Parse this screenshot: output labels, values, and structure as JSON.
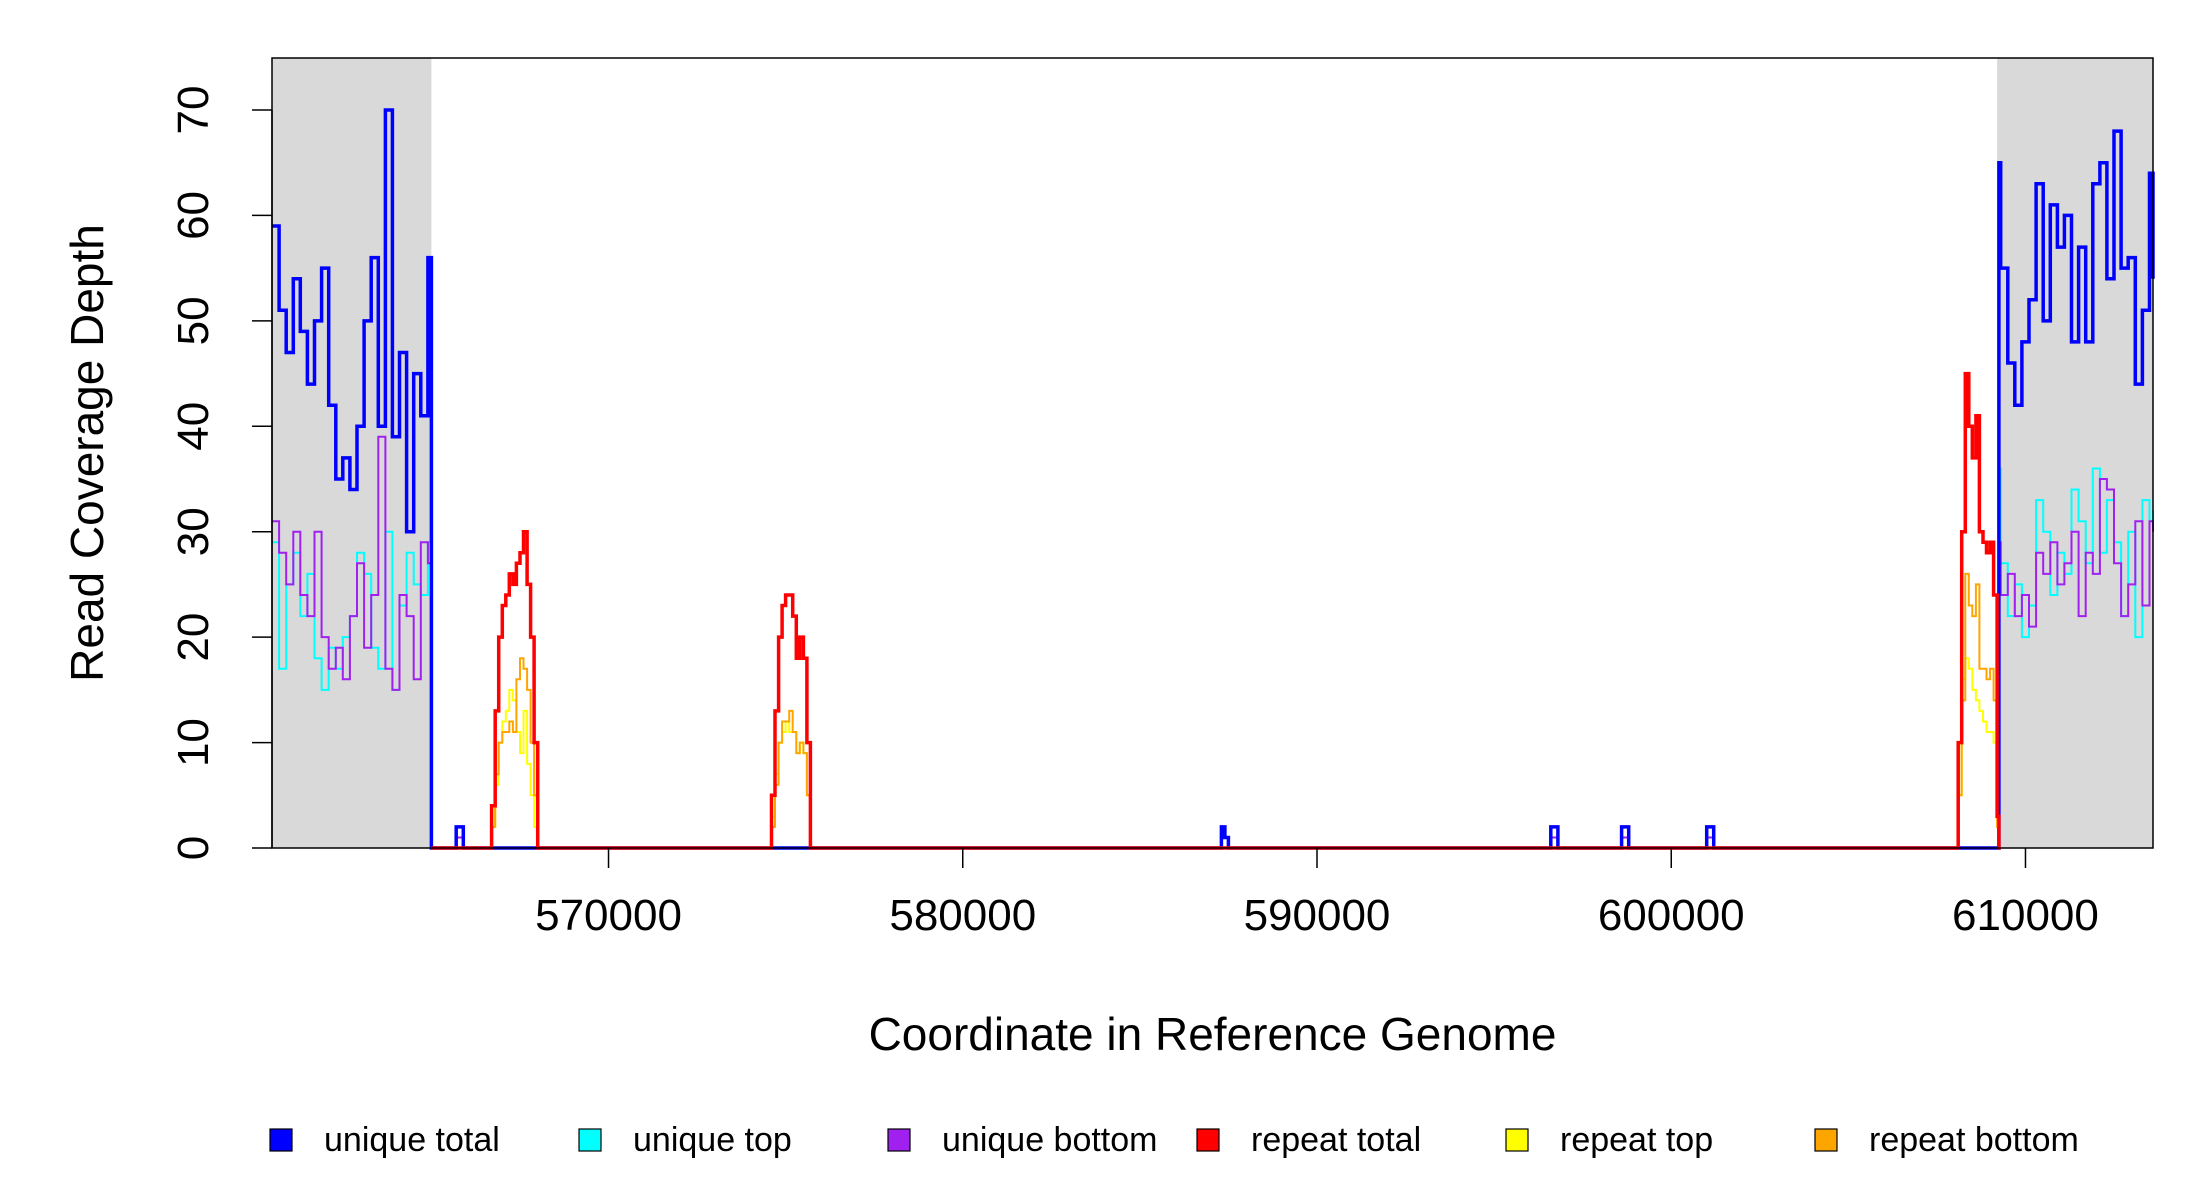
{
  "chart_data": {
    "type": "line",
    "title": "",
    "xlabel": "Coordinate in Reference Genome",
    "ylabel": "Read Coverage Depth",
    "xlim": [
      560500,
      613600
    ],
    "ylim": [
      0,
      70
    ],
    "xticks": [
      570000,
      580000,
      590000,
      600000,
      610000
    ],
    "xtick_labels": [
      "570000",
      "580000",
      "590000",
      "600000",
      "610000"
    ],
    "yticks": [
      0,
      10,
      20,
      30,
      40,
      50,
      60,
      70
    ],
    "ytick_labels": [
      "0",
      "10",
      "20",
      "30",
      "40",
      "50",
      "60",
      "70"
    ],
    "grid": false,
    "legend_position": "bottom",
    "shaded_regions": [
      {
        "x0": 560500,
        "x1": 565000,
        "color": "#d9d9d9"
      },
      {
        "x0": 609200,
        "x1": 613600,
        "color": "#d9d9d9"
      }
    ],
    "series": [
      {
        "name": "unique total",
        "color": "#0000ff",
        "x": [
          560500,
          560700,
          560900,
          561100,
          561300,
          561500,
          561700,
          561900,
          562100,
          562300,
          562500,
          562700,
          562900,
          563100,
          563300,
          563500,
          563700,
          563900,
          564100,
          564300,
          564500,
          564700,
          564900,
          565000,
          565050,
          565100,
          565700,
          565900,
          566000,
          587300,
          587400,
          587500,
          587700,
          596600,
          596800,
          596900,
          598600,
          598800,
          598900,
          601000,
          601200,
          601300,
          609100,
          609250,
          609300,
          609500,
          609700,
          609900,
          610100,
          610300,
          610500,
          610700,
          610900,
          611100,
          611300,
          611500,
          611700,
          611900,
          612100,
          612300,
          612500,
          612700,
          612900,
          613100,
          613300,
          613500,
          613600
        ],
        "y": [
          59,
          51,
          47,
          54,
          49,
          44,
          50,
          55,
          42,
          35,
          37,
          34,
          40,
          50,
          56,
          40,
          70,
          39,
          47,
          30,
          45,
          41,
          56,
          0,
          0,
          0,
          2,
          0,
          0,
          2,
          1,
          0,
          0,
          2,
          0,
          0,
          2,
          0,
          0,
          2,
          0,
          0,
          0,
          65,
          55,
          46,
          42,
          48,
          52,
          63,
          50,
          61,
          57,
          60,
          48,
          57,
          48,
          63,
          65,
          54,
          68,
          55,
          56,
          44,
          51,
          64,
          54
        ]
      },
      {
        "name": "unique top",
        "color": "#00ffff",
        "x": [
          560500,
          560700,
          560900,
          561100,
          561300,
          561500,
          561700,
          561900,
          562100,
          562300,
          562500,
          562700,
          562900,
          563100,
          563300,
          563500,
          563700,
          563900,
          564100,
          564300,
          564500,
          564700,
          564900,
          565000,
          565100,
          565700,
          565900,
          566000,
          587300,
          587400,
          587500,
          587700,
          596600,
          596800,
          596900,
          598600,
          598800,
          598900,
          601000,
          601200,
          601300,
          609100,
          609250,
          609300,
          609500,
          609700,
          609900,
          610100,
          610300,
          610500,
          610700,
          610900,
          611100,
          611300,
          611500,
          611700,
          611900,
          612100,
          612300,
          612500,
          612700,
          612900,
          613100,
          613300,
          613500,
          613600
        ],
        "y": [
          29,
          17,
          25,
          28,
          22,
          26,
          18,
          15,
          19,
          17,
          20,
          22,
          28,
          26,
          19,
          17,
          30,
          15,
          23,
          28,
          25,
          24,
          29,
          0,
          0,
          1,
          0,
          0,
          1,
          1,
          0,
          0,
          1,
          0,
          0,
          1,
          0,
          0,
          1,
          0,
          0,
          0,
          36,
          27,
          22,
          25,
          20,
          23,
          33,
          30,
          24,
          28,
          26,
          34,
          31,
          27,
          36,
          28,
          33,
          29,
          22,
          30,
          20,
          33,
          31,
          32
        ]
      },
      {
        "name": "unique bottom",
        "color": "#a020f0",
        "x": [
          560500,
          560700,
          560900,
          561100,
          561300,
          561500,
          561700,
          561900,
          562100,
          562300,
          562500,
          562700,
          562900,
          563100,
          563300,
          563500,
          563700,
          563900,
          564100,
          564300,
          564500,
          564700,
          564900,
          565000,
          565100,
          565700,
          565900,
          566000,
          587300,
          587400,
          587500,
          587700,
          596600,
          596800,
          596900,
          598600,
          598800,
          598900,
          601000,
          601200,
          601300,
          609100,
          609250,
          609300,
          609500,
          609700,
          609900,
          610100,
          610300,
          610500,
          610700,
          610900,
          611100,
          611300,
          611500,
          611700,
          611900,
          612100,
          612300,
          612500,
          612700,
          612900,
          613100,
          613300,
          613500,
          613600
        ],
        "y": [
          31,
          28,
          25,
          30,
          24,
          22,
          30,
          20,
          17,
          19,
          16,
          22,
          27,
          19,
          24,
          39,
          17,
          15,
          24,
          22,
          16,
          29,
          27,
          0,
          0,
          1,
          0,
          0,
          1,
          1,
          0,
          0,
          1,
          0,
          0,
          1,
          0,
          0,
          1,
          0,
          0,
          0,
          29,
          24,
          26,
          22,
          24,
          21,
          28,
          26,
          29,
          25,
          27,
          30,
          22,
          28,
          26,
          35,
          34,
          27,
          22,
          25,
          31,
          23,
          31,
          30
        ]
      },
      {
        "name": "repeat total",
        "color": "#ff0000",
        "x": [
          565000,
          566600,
          566700,
          566800,
          566900,
          567000,
          567100,
          567200,
          567300,
          567400,
          567500,
          567600,
          567700,
          567800,
          567900,
          568000,
          568100,
          574500,
          574600,
          574700,
          574800,
          574900,
          575000,
          575100,
          575200,
          575300,
          575400,
          575500,
          575600,
          575700,
          575800,
          608000,
          608100,
          608200,
          608300,
          608400,
          608500,
          608600,
          608700,
          608800,
          608900,
          609000,
          609100,
          609200,
          609250,
          609300
        ],
        "y": [
          0,
          0,
          4,
          13,
          20,
          23,
          24,
          26,
          25,
          27,
          28,
          30,
          25,
          20,
          10,
          0,
          0,
          0,
          5,
          13,
          20,
          23,
          24,
          24,
          22,
          18,
          20,
          18,
          10,
          0,
          0,
          0,
          10,
          30,
          45,
          40,
          37,
          41,
          30,
          29,
          28,
          29,
          24,
          3,
          0,
          0
        ]
      },
      {
        "name": "repeat top",
        "color": "#ffff00",
        "x": [
          565000,
          566600,
          566700,
          566800,
          566900,
          567000,
          567100,
          567200,
          567300,
          567400,
          567500,
          567600,
          567700,
          567800,
          567900,
          568000,
          568100,
          574500,
          574600,
          574700,
          574800,
          574900,
          575000,
          575100,
          575200,
          575300,
          575400,
          575500,
          575600,
          575700,
          575800,
          608000,
          608100,
          608200,
          608300,
          608400,
          608500,
          608600,
          608700,
          608800,
          608900,
          609000,
          609100,
          609200,
          609250,
          609300
        ],
        "y": [
          0,
          0,
          2,
          6,
          10,
          12,
          13,
          15,
          14,
          11,
          9,
          13,
          8,
          5,
          2,
          0,
          0,
          0,
          3,
          7,
          10,
          11,
          12,
          11,
          11,
          9,
          10,
          9,
          5,
          0,
          0,
          0,
          5,
          16,
          18,
          17,
          15,
          14,
          13,
          12,
          11,
          11,
          10,
          2,
          0,
          0
        ]
      },
      {
        "name": "repeat bottom",
        "color": "#ffa500",
        "x": [
          565000,
          566600,
          566700,
          566800,
          566900,
          567000,
          567100,
          567200,
          567300,
          567400,
          567500,
          567600,
          567700,
          567800,
          567900,
          568000,
          568100,
          574500,
          574600,
          574700,
          574800,
          574900,
          575000,
          575100,
          575200,
          575300,
          575400,
          575500,
          575600,
          575700,
          575800,
          608000,
          608100,
          608200,
          608300,
          608400,
          608500,
          608600,
          608700,
          608800,
          608900,
          609000,
          609100,
          609200,
          609250,
          609300
        ],
        "y": [
          0,
          0,
          2,
          7,
          10,
          11,
          11,
          12,
          11,
          16,
          18,
          17,
          15,
          10,
          5,
          0,
          0,
          0,
          2,
          6,
          10,
          12,
          12,
          13,
          11,
          9,
          10,
          9,
          5,
          0,
          0,
          0,
          5,
          14,
          26,
          23,
          22,
          25,
          17,
          17,
          16,
          17,
          14,
          2,
          0,
          0
        ]
      }
    ]
  }
}
